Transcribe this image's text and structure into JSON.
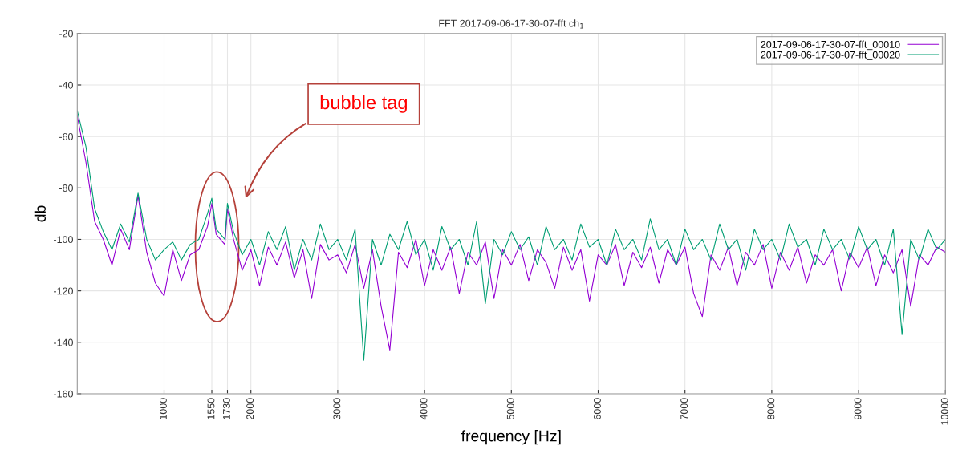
{
  "chart_data": {
    "type": "line",
    "title": "FFT 2017-09-06-17-30-07-fft ch$_{1}$",
    "xlabel": "frequency [Hz]",
    "ylabel": "db",
    "x": [
      0,
      100,
      200,
      300,
      400,
      500,
      600,
      700,
      800,
      900,
      1000,
      1100,
      1200,
      1300,
      1400,
      1500,
      1550,
      1600,
      1700,
      1730,
      1800,
      1900,
      2000,
      2100,
      2200,
      2300,
      2400,
      2500,
      2600,
      2700,
      2800,
      2900,
      3000,
      3100,
      3200,
      3300,
      3400,
      3500,
      3600,
      3700,
      3800,
      3900,
      4000,
      4100,
      4200,
      4300,
      4400,
      4500,
      4600,
      4700,
      4800,
      4900,
      5000,
      5100,
      5200,
      5300,
      5400,
      5500,
      5600,
      5700,
      5800,
      5900,
      6000,
      6100,
      6200,
      6300,
      6400,
      6500,
      6600,
      6700,
      6800,
      6900,
      7000,
      7100,
      7200,
      7300,
      7400,
      7500,
      7600,
      7700,
      7800,
      7900,
      8000,
      8100,
      8200,
      8300,
      8400,
      8500,
      8600,
      8700,
      8800,
      8900,
      9000,
      9100,
      9200,
      9300,
      9400,
      9500,
      9600,
      9700,
      9800,
      9900,
      10000
    ],
    "series": [
      {
        "name": "2017-09-06-17-30-07-fft_00010",
        "color": "#9400d3",
        "values": [
          -52,
          -70,
          -93,
          -100,
          -110,
          -96,
          -104,
          -83,
          -105,
          -117,
          -122,
          -104,
          -116,
          -106,
          -104,
          -95,
          -86,
          -98,
          -102,
          -88,
          -100,
          -112,
          -104,
          -118,
          -103,
          -110,
          -101,
          -115,
          -104,
          -123,
          -102,
          -108,
          -106,
          -113,
          -102,
          -119,
          -104,
          -126,
          -143,
          -105,
          -111,
          -100,
          -118,
          -104,
          -112,
          -103,
          -121,
          -105,
          -110,
          -101,
          -123,
          -104,
          -110,
          -102,
          -116,
          -104,
          -109,
          -119,
          -103,
          -112,
          -104,
          -124,
          -106,
          -110,
          -102,
          -118,
          -105,
          -111,
          -103,
          -117,
          -104,
          -110,
          -103,
          -121,
          -130,
          -106,
          -112,
          -103,
          -118,
          -105,
          -110,
          -102,
          -119,
          -105,
          -112,
          -103,
          -117,
          -106,
          -110,
          -104,
          -120,
          -105,
          -111,
          -103,
          -118,
          -106,
          -113,
          -104,
          -126,
          -106,
          -110,
          -103,
          -105
        ]
      },
      {
        "name": "2017-09-06-17-30-07-fft_00020",
        "color": "#009e73",
        "values": [
          -50,
          -64,
          -88,
          -97,
          -104,
          -94,
          -101,
          -82,
          -100,
          -108,
          -104,
          -101,
          -108,
          -102,
          -100,
          -90,
          -84,
          -96,
          -100,
          -86,
          -97,
          -106,
          -100,
          -110,
          -97,
          -104,
          -95,
          -112,
          -100,
          -108,
          -94,
          -104,
          -100,
          -108,
          -96,
          -147,
          -100,
          -110,
          -98,
          -104,
          -93,
          -106,
          -100,
          -112,
          -95,
          -104,
          -100,
          -110,
          -93,
          -125,
          -100,
          -106,
          -97,
          -104,
          -99,
          -110,
          -95,
          -104,
          -100,
          -108,
          -94,
          -103,
          -100,
          -110,
          -96,
          -104,
          -100,
          -108,
          -92,
          -104,
          -100,
          -110,
          -96,
          -104,
          -100,
          -108,
          -94,
          -104,
          -100,
          -112,
          -96,
          -104,
          -100,
          -108,
          -94,
          -103,
          -100,
          -110,
          -96,
          -104,
          -100,
          -108,
          -95,
          -104,
          -100,
          -110,
          -96,
          -137,
          -100,
          -108,
          -96,
          -104,
          -100
        ]
      }
    ],
    "xlim": [
      0,
      10000
    ],
    "xticks": [
      1000,
      1550,
      1730,
      2000,
      3000,
      4000,
      5000,
      6000,
      7000,
      8000,
      9000,
      10000
    ],
    "ylim": [
      -160,
      -20
    ],
    "yticks": [
      -160,
      -140,
      -120,
      -100,
      -80,
      -60,
      -40,
      -20
    ],
    "grid": true,
    "legend": "top right",
    "line_style": "solid",
    "marker": "none",
    "annotations": [
      "bubble tag"
    ]
  }
}
